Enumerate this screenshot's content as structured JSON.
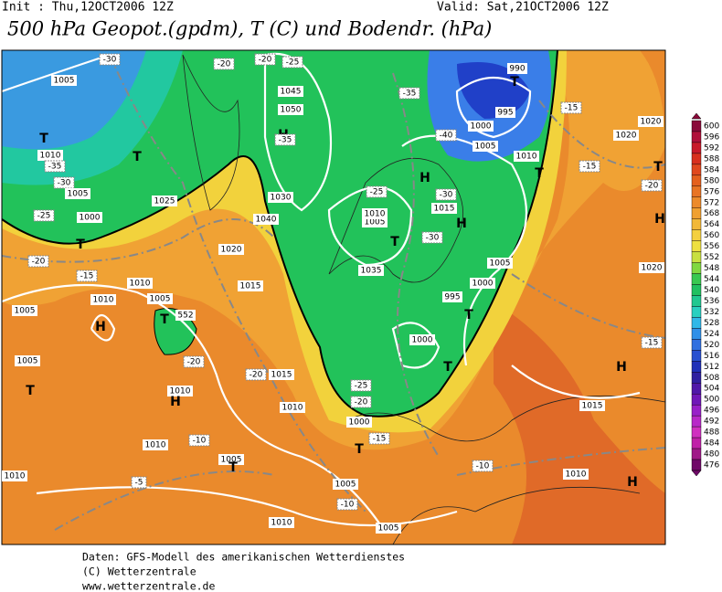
{
  "header": {
    "init": "Init : Thu,12OCT2006 12Z",
    "valid": "Valid: Sat,21OCT2006 12Z",
    "title": "500 hPa Geopot.(gpdm), T (C) und Bodendr. (hPa)"
  },
  "colorbar": {
    "ticks": [
      600,
      596,
      592,
      588,
      584,
      580,
      576,
      572,
      568,
      564,
      560,
      556,
      552,
      548,
      544,
      540,
      536,
      532,
      528,
      524,
      520,
      516,
      512,
      508,
      504,
      500,
      496,
      492,
      488,
      484,
      480,
      476
    ],
    "colors": [
      "#8a0a3a",
      "#b0103a",
      "#c81a2a",
      "#d8301e",
      "#e0481e",
      "#e4601e",
      "#e87424",
      "#ec8a2a",
      "#f0a030",
      "#f2b838",
      "#f4d040",
      "#eee040",
      "#c8e040",
      "#80d840",
      "#38c850",
      "#20c060",
      "#20c890",
      "#28d0c0",
      "#30b8e8",
      "#3090e8",
      "#3070e0",
      "#2850d0",
      "#2030b8",
      "#3020a0",
      "#5018a8",
      "#7018b8",
      "#9820c8",
      "#b828c8",
      "#d030c0",
      "#c020a8",
      "#a01888",
      "#700868"
    ]
  },
  "map": {
    "labels": [
      "1005",
      "-30",
      "T",
      "1010",
      "-35",
      "T",
      "-30",
      "1005",
      "-25",
      "1000",
      "T",
      "-20",
      "-15",
      "1010",
      "1010",
      "1005",
      "1005",
      "H",
      "T",
      "552",
      "-20",
      "1005",
      "T",
      "1010",
      "H",
      "-20",
      "1015",
      "1010",
      "1010",
      "-10",
      "1005",
      "T",
      "1010",
      "-5",
      "1010",
      "1005",
      "-10",
      "1005",
      "T",
      "1000",
      "-15",
      "-20",
      "-25",
      "1000",
      "995",
      "T",
      "1000",
      "1005",
      "T",
      "-10",
      "1010",
      "H",
      "1015",
      "H",
      "-15",
      "1020",
      "H",
      "-20",
      "T",
      "1020",
      "1020",
      "-15",
      "-15",
      "T",
      "1010",
      "1005",
      "-40",
      "1000",
      "995",
      "T",
      "990",
      "-35",
      "H",
      "-30",
      "1015",
      "H",
      "-30",
      "T",
      "1005",
      "1010",
      "-25",
      "1035",
      "1030",
      "1040",
      "1045",
      "1050",
      "H",
      "-35",
      "-25",
      "H",
      "-20",
      "-20",
      "1025",
      "1020",
      "1015"
    ]
  },
  "footer": {
    "lines": [
      "Daten: GFS-Modell des amerikanischen Wetterdienstes",
      "(C) Wetterzentrale",
      "www.wetterzentrale.de"
    ]
  }
}
